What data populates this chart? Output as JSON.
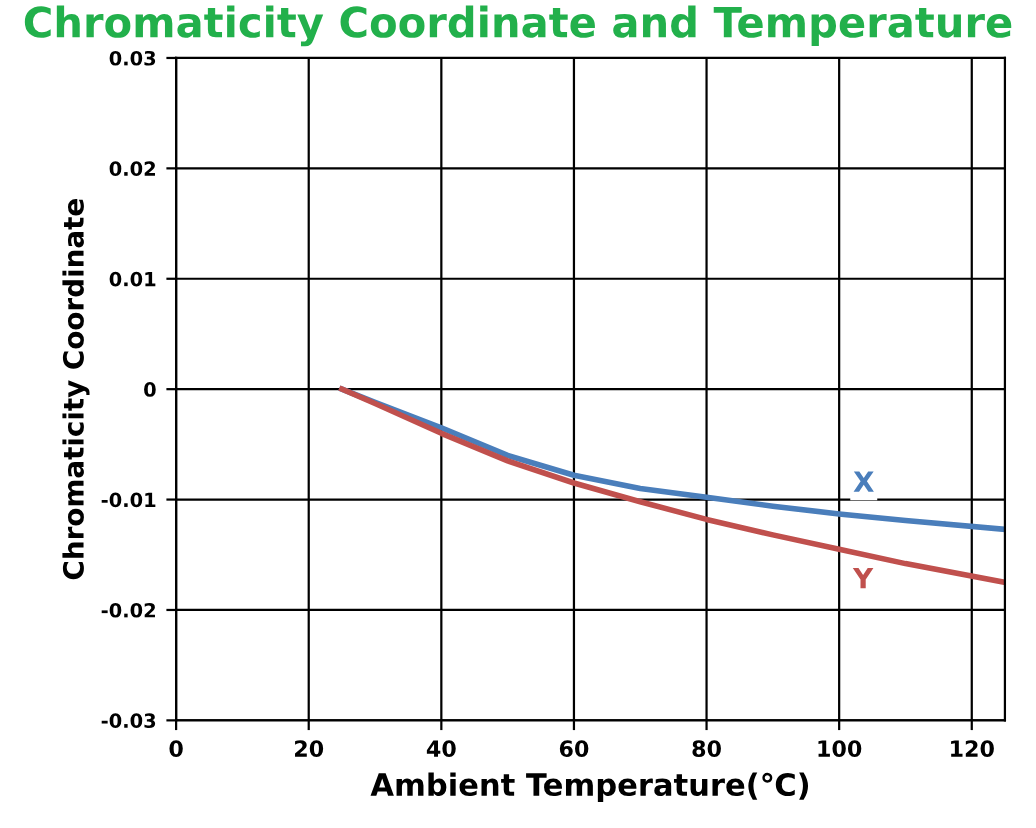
{
  "chart_data": {
    "type": "line",
    "title": "Chromaticity Coordinate and Temperature",
    "xlabel": "Ambient Temperature(℃)",
    "ylabel": "Chromaticity Coordinate",
    "x": [
      25,
      30,
      40,
      50,
      60,
      70,
      80,
      90,
      100,
      110,
      125
    ],
    "series": [
      {
        "name": "X",
        "color": "#4a7ebb",
        "values": [
          0,
          -0.0012,
          -0.0035,
          -0.006,
          -0.0078,
          -0.009,
          -0.0098,
          -0.0106,
          -0.0113,
          -0.0119,
          -0.0127
        ]
      },
      {
        "name": "Y",
        "color": "#c0504d",
        "values": [
          0,
          -0.0013,
          -0.004,
          -0.0065,
          -0.0085,
          -0.0102,
          -0.0118,
          -0.0132,
          -0.0145,
          -0.0158,
          -0.0175
        ]
      }
    ],
    "xlim": [
      0,
      125
    ],
    "xticks": [
      0,
      20,
      40,
      60,
      80,
      100,
      120
    ],
    "ylim": [
      -0.03,
      0.03
    ],
    "yticks": [
      -0.03,
      -0.02,
      -0.01,
      0,
      0.01,
      0.02,
      0.03
    ],
    "grid": true,
    "marker": "none",
    "line_style": "solid"
  }
}
